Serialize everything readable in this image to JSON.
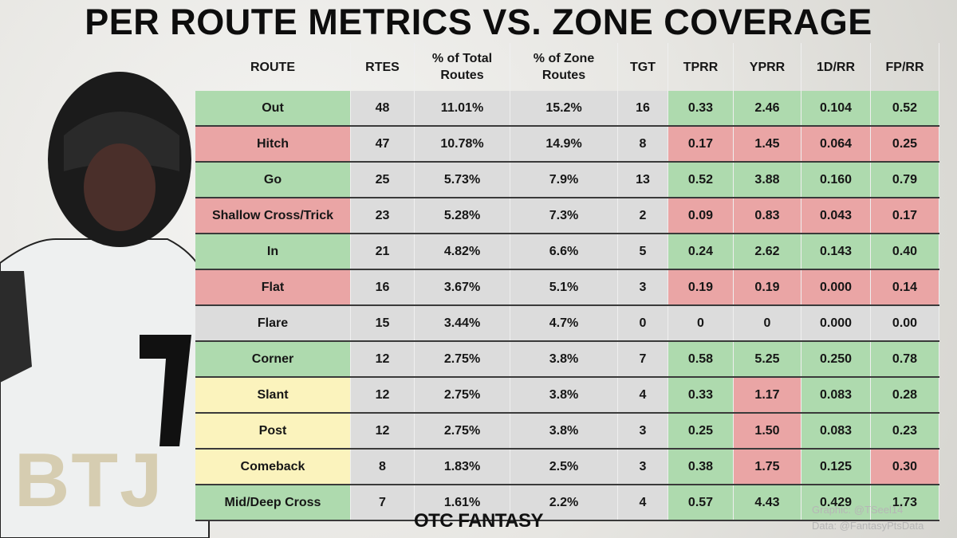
{
  "header": {
    "title": "PER ROUTE METRICS VS. ZONE COVERAGE"
  },
  "watermark": "BTJ",
  "table": {
    "columns": [
      "ROUTE",
      "RTES",
      "% of Total Routes",
      "% of Zone Routes",
      "TGT",
      "TPRR",
      "YPRR",
      "1D/RR",
      "FP/RR"
    ],
    "rows": [
      {
        "cells": [
          "Out",
          "48",
          "11.01%",
          "15.2%",
          "16",
          "0.33",
          "2.46",
          "0.104",
          "0.52"
        ],
        "colors": [
          "#aedaae",
          "#dcdcdc",
          "#dcdcdc",
          "#dcdcdc",
          "#dcdcdc",
          "#aedaae",
          "#aedaae",
          "#aedaae",
          "#aedaae"
        ]
      },
      {
        "cells": [
          "Hitch",
          "47",
          "10.78%",
          "14.9%",
          "8",
          "0.17",
          "1.45",
          "0.064",
          "0.25"
        ],
        "colors": [
          "#eaa5a5",
          "#dcdcdc",
          "#dcdcdc",
          "#dcdcdc",
          "#dcdcdc",
          "#eaa5a5",
          "#eaa5a5",
          "#eaa5a5",
          "#eaa5a5"
        ]
      },
      {
        "cells": [
          "Go",
          "25",
          "5.73%",
          "7.9%",
          "13",
          "0.52",
          "3.88",
          "0.160",
          "0.79"
        ],
        "colors": [
          "#aedaae",
          "#dcdcdc",
          "#dcdcdc",
          "#dcdcdc",
          "#dcdcdc",
          "#aedaae",
          "#aedaae",
          "#aedaae",
          "#aedaae"
        ]
      },
      {
        "cells": [
          "Shallow Cross/Trick",
          "23",
          "5.28%",
          "7.3%",
          "2",
          "0.09",
          "0.83",
          "0.043",
          "0.17"
        ],
        "colors": [
          "#eaa5a5",
          "#dcdcdc",
          "#dcdcdc",
          "#dcdcdc",
          "#dcdcdc",
          "#eaa5a5",
          "#eaa5a5",
          "#eaa5a5",
          "#eaa5a5"
        ]
      },
      {
        "cells": [
          "In",
          "21",
          "4.82%",
          "6.6%",
          "5",
          "0.24",
          "2.62",
          "0.143",
          "0.40"
        ],
        "colors": [
          "#aedaae",
          "#dcdcdc",
          "#dcdcdc",
          "#dcdcdc",
          "#dcdcdc",
          "#aedaae",
          "#aedaae",
          "#aedaae",
          "#aedaae"
        ]
      },
      {
        "cells": [
          "Flat",
          "16",
          "3.67%",
          "5.1%",
          "3",
          "0.19",
          "0.19",
          "0.000",
          "0.14"
        ],
        "colors": [
          "#eaa5a5",
          "#dcdcdc",
          "#dcdcdc",
          "#dcdcdc",
          "#dcdcdc",
          "#eaa5a5",
          "#eaa5a5",
          "#eaa5a5",
          "#eaa5a5"
        ]
      },
      {
        "cells": [
          "Flare",
          "15",
          "3.44%",
          "4.7%",
          "0",
          "0",
          "0",
          "0.000",
          "0.00"
        ],
        "colors": [
          "#dcdcdc",
          "#dcdcdc",
          "#dcdcdc",
          "#dcdcdc",
          "#dcdcdc",
          "#dcdcdc",
          "#dcdcdc",
          "#dcdcdc",
          "#dcdcdc"
        ]
      },
      {
        "cells": [
          "Corner",
          "12",
          "2.75%",
          "3.8%",
          "7",
          "0.58",
          "5.25",
          "0.250",
          "0.78"
        ],
        "colors": [
          "#aedaae",
          "#dcdcdc",
          "#dcdcdc",
          "#dcdcdc",
          "#dcdcdc",
          "#aedaae",
          "#aedaae",
          "#aedaae",
          "#aedaae"
        ]
      },
      {
        "cells": [
          "Slant",
          "12",
          "2.75%",
          "3.8%",
          "4",
          "0.33",
          "1.17",
          "0.083",
          "0.28"
        ],
        "colors": [
          "#fbf3bd",
          "#dcdcdc",
          "#dcdcdc",
          "#dcdcdc",
          "#dcdcdc",
          "#aedaae",
          "#eaa5a5",
          "#aedaae",
          "#aedaae"
        ]
      },
      {
        "cells": [
          "Post",
          "12",
          "2.75%",
          "3.8%",
          "3",
          "0.25",
          "1.50",
          "0.083",
          "0.23"
        ],
        "colors": [
          "#fbf3bd",
          "#dcdcdc",
          "#dcdcdc",
          "#dcdcdc",
          "#dcdcdc",
          "#aedaae",
          "#eaa5a5",
          "#aedaae",
          "#aedaae"
        ]
      },
      {
        "cells": [
          "Comeback",
          "8",
          "1.83%",
          "2.5%",
          "3",
          "0.38",
          "1.75",
          "0.125",
          "0.30"
        ],
        "colors": [
          "#fbf3bd",
          "#dcdcdc",
          "#dcdcdc",
          "#dcdcdc",
          "#dcdcdc",
          "#aedaae",
          "#eaa5a5",
          "#aedaae",
          "#eaa5a5"
        ]
      },
      {
        "cells": [
          "Mid/Deep Cross",
          "7",
          "1.61%",
          "2.2%",
          "4",
          "0.57",
          "4.43",
          "0.429",
          "1.73"
        ],
        "colors": [
          "#aedaae",
          "#dcdcdc",
          "#dcdcdc",
          "#dcdcdc",
          "#dcdcdc",
          "#aedaae",
          "#aedaae",
          "#aedaae",
          "#aedaae"
        ]
      }
    ]
  },
  "footer": {
    "brand": "OTC FANTASY",
    "graphic_credit": "Graphic: @TSeel14",
    "data_credit": "Data: @FantasyPtsData"
  }
}
